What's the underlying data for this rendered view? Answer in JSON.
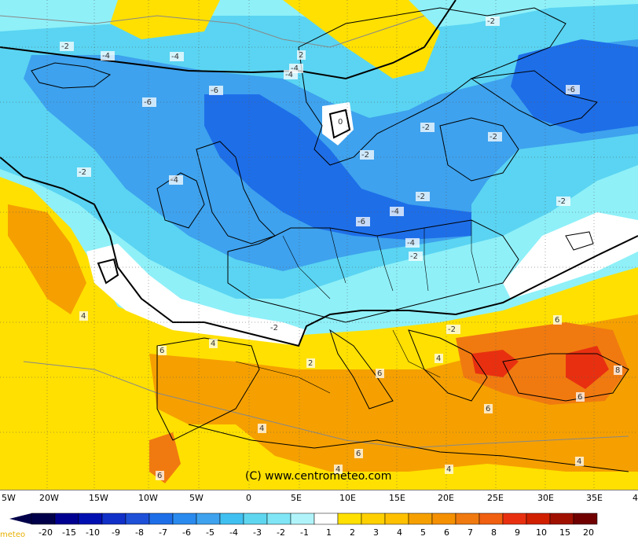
{
  "map": {
    "copyright": "(C) www.centrometeo.com",
    "contour_labels": [
      {
        "text": "-2"
      },
      {
        "text": "-4"
      },
      {
        "text": "-4"
      },
      {
        "text": "-6"
      },
      {
        "text": "-2"
      },
      {
        "text": "-4"
      },
      {
        "text": "-2"
      },
      {
        "text": "-6"
      },
      {
        "text": "-2"
      },
      {
        "text": "-2"
      },
      {
        "text": "-4"
      },
      {
        "text": "-2"
      },
      {
        "text": "-4"
      },
      {
        "text": "-2"
      },
      {
        "text": "-6"
      },
      {
        "text": "-2"
      },
      {
        "text": "-4"
      },
      {
        "text": "-6"
      },
      {
        "text": "-2"
      },
      {
        "text": "-4"
      },
      {
        "text": "2"
      },
      {
        "text": "4"
      },
      {
        "text": "6"
      },
      {
        "text": "4"
      },
      {
        "text": "2"
      },
      {
        "text": "4"
      },
      {
        "text": "6"
      },
      {
        "text": "6"
      },
      {
        "text": "4"
      },
      {
        "text": "8"
      },
      {
        "text": "6"
      },
      {
        "text": "6"
      },
      {
        "text": "4"
      },
      {
        "text": "4"
      },
      {
        "text": "6"
      },
      {
        "text": "6"
      },
      {
        "text": "4"
      },
      {
        "text": "-2"
      },
      {
        "text": "-2"
      },
      {
        "text": "0"
      }
    ]
  },
  "longitude_labels": [
    "5W",
    "20W",
    "15W",
    "10W",
    "5W",
    "0",
    "5E",
    "10E",
    "15E",
    "20E",
    "25E",
    "30E",
    "35E",
    "4"
  ],
  "legend": {
    "logo_text": "meteo",
    "values": [
      "-20",
      "-15",
      "-10",
      "-9",
      "-8",
      "-7",
      "-6",
      "-5",
      "-4",
      "-3",
      "-2",
      "-1",
      "1",
      "2",
      "3",
      "4",
      "5",
      "6",
      "7",
      "8",
      "9",
      "10",
      "15",
      "20"
    ],
    "colors": {
      "blue_dark": "#00004a",
      "blue_mid": "#1e6ee8",
      "cyan": "#5fd6f0",
      "white": "#ffffff",
      "yellow": "#ffe000",
      "orange": "#f5a000",
      "orange_dark": "#f07a10",
      "red": "#e83010"
    }
  }
}
